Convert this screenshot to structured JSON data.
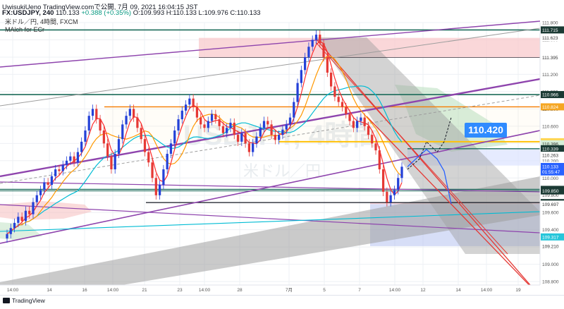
{
  "header": {
    "publisher": "UwisukiUeno TradingView.comで公開, 7月 09, 2021 16:04:15 JST",
    "symbol": "FX:USDJPY, 240",
    "last": "110.133",
    "change": "+0.388 (+0.35%)",
    "ohlc": "O:109.993 H:110.133 L:109.976 C:110.133",
    "subtitle": "米ドル／円, 4時間, FXCM",
    "indicator": "MAlch for ECr"
  },
  "watermark": {
    "line1": "USDJPY, 4時間",
    "line2": "米ドル／円"
  },
  "callout": {
    "text": "110.420"
  },
  "footer": {
    "brand": "TradingView"
  },
  "chart_data": {
    "type": "line",
    "title": "",
    "price_axis": {
      "range": [
        108.76,
        111.8
      ],
      "ticks": [
        "111.800",
        "111.600",
        "111.400",
        "111.200",
        "111.000",
        "110.800",
        "110.600",
        "110.400",
        "110.200",
        "110.000",
        "109.800",
        "109.600",
        "109.400",
        "109.200",
        "109.000",
        "108.800"
      ]
    },
    "price_labels": [
      {
        "value": "111.715",
        "price": 111.715,
        "style": "dark"
      },
      {
        "value": "111.623",
        "price": 111.623,
        "style": "plain"
      },
      {
        "value": "111.395",
        "price": 111.395,
        "style": "plain"
      },
      {
        "value": "110.966",
        "price": 110.966,
        "style": "dark"
      },
      {
        "value": "110.824",
        "price": 110.824,
        "style": "orange"
      },
      {
        "value": "110.420",
        "price": 110.42,
        "style": "yellow"
      },
      {
        "value": "110.396",
        "price": 110.396,
        "style": "green"
      },
      {
        "value": "110.339",
        "price": 110.339,
        "style": "dark"
      },
      {
        "value": "110.263",
        "price": 110.263,
        "style": "plain"
      },
      {
        "value": "110.144",
        "price": 110.144,
        "style": "plain"
      },
      {
        "value": "110.133",
        "price": 110.133,
        "style": "blue"
      },
      {
        "value": "01:55:47",
        "price": 110.07,
        "style": "blue"
      },
      {
        "value": "109.868",
        "price": 109.868,
        "style": "dark"
      },
      {
        "value": "109.850",
        "price": 109.85,
        "style": "dark"
      },
      {
        "value": "109.715",
        "price": 109.715,
        "style": "dark"
      },
      {
        "value": "109.697",
        "price": 109.697,
        "style": "plain"
      },
      {
        "value": "109.317",
        "price": 109.317,
        "style": "cyan"
      },
      {
        "value": "109.210",
        "price": 109.21,
        "style": "plain"
      }
    ],
    "time_axis": {
      "labels": [
        "14:00",
        "14",
        "16",
        "14:00",
        "21",
        "23",
        "14:00",
        "28",
        "7月",
        "5",
        "7",
        "14:00",
        "12",
        "14",
        "14:00",
        "19"
      ]
    },
    "close": [
      109.35,
      109.42,
      109.48,
      109.55,
      109.5,
      109.62,
      109.58,
      109.72,
      109.8,
      109.86,
      109.95,
      109.92,
      110.02,
      110.1,
      110.08,
      110.15,
      110.2,
      110.25,
      110.18,
      110.3,
      110.42,
      110.55,
      110.72,
      110.8,
      110.68,
      110.55,
      110.4,
      110.25,
      110.1,
      110.28,
      110.45,
      110.62,
      110.72,
      110.8,
      110.7,
      110.58,
      110.45,
      110.3,
      110.18,
      110.0,
      109.8,
      109.92,
      110.1,
      110.28,
      110.4,
      110.55,
      110.68,
      110.78,
      110.85,
      110.92,
      110.82,
      110.7,
      110.62,
      110.58,
      110.66,
      110.74,
      110.68,
      110.6,
      110.52,
      110.58,
      110.64,
      110.5,
      110.42,
      110.52,
      110.4,
      110.3,
      110.4,
      110.48,
      110.58,
      110.66,
      110.62,
      110.5,
      110.44,
      110.5,
      110.56,
      110.62,
      110.7,
      110.88,
      111.1,
      111.25,
      111.4,
      111.52,
      111.6,
      111.66,
      111.56,
      111.4,
      111.22,
      111.06,
      110.94,
      110.88,
      110.82,
      110.74,
      110.66,
      110.58,
      110.66,
      110.7,
      110.6,
      110.5,
      110.4,
      110.32,
      110.1,
      109.84,
      109.72,
      109.8,
      109.86,
      110.0,
      110.13
    ],
    "drawn_prices": {
      "resistance": 111.715,
      "res_zone": [
        111.395,
        111.623
      ],
      "level_966": 110.966,
      "orange_824": 110.824,
      "yellow_420": 110.42,
      "level_339": 110.339,
      "level_850": 109.85,
      "level_868": 109.868,
      "level_715": 109.715,
      "blue_zone": [
        109.21,
        109.697
      ]
    },
    "forecast_path": [
      110.13,
      110.26,
      110.33,
      110.22,
      110.08,
      109.7
    ],
    "forecast_alt": [
      110.1,
      110.22,
      110.42,
      110.3,
      110.42,
      110.7
    ],
    "ma_colors": {
      "fast": "#ff2b2b",
      "mid": "#ff9800",
      "slow": "#00bcd4"
    },
    "grid": true
  }
}
